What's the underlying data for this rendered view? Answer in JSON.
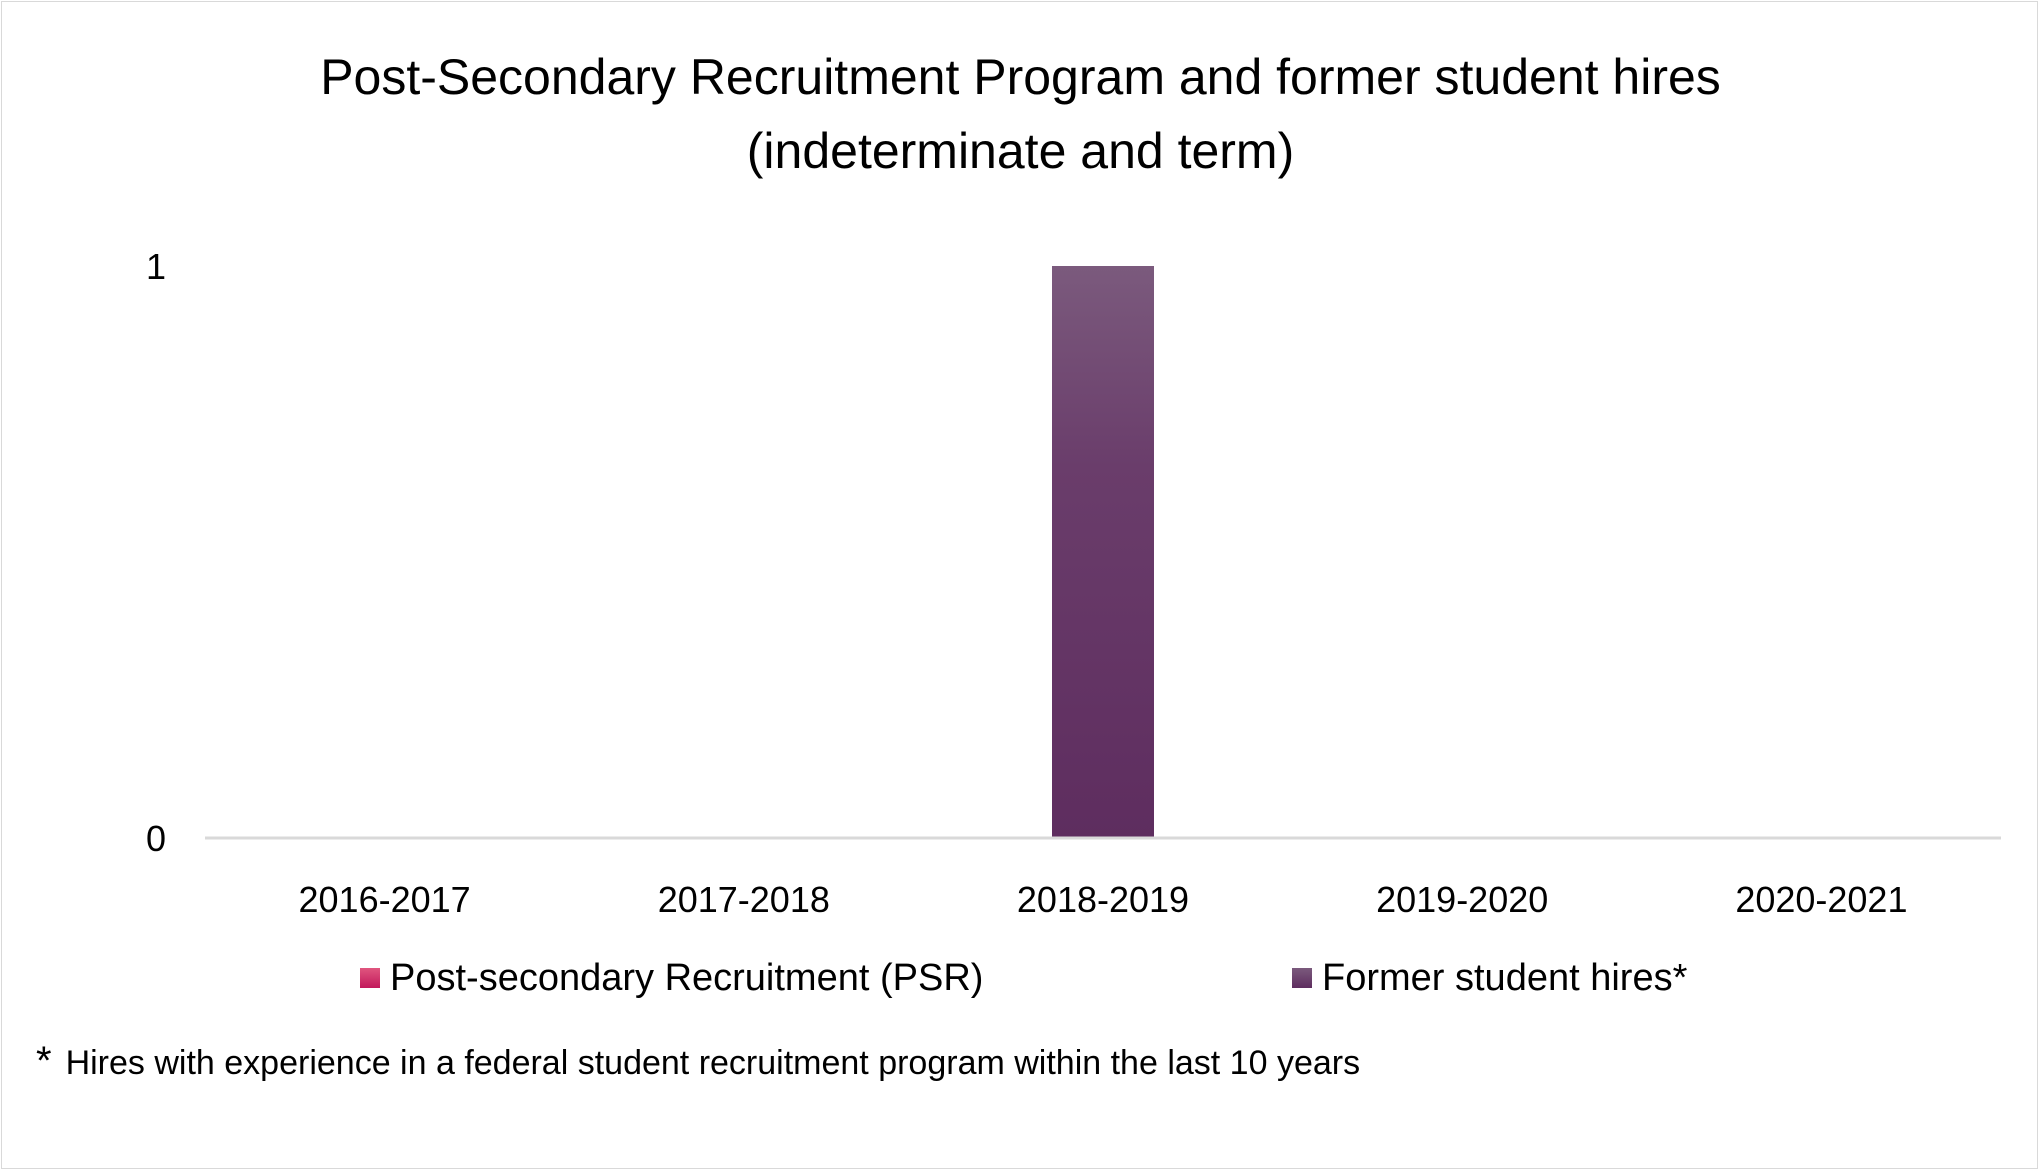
{
  "chart_data": {
    "type": "bar",
    "title": "Post-Secondary Recruitment Program and former student hires (indeterminate and term)",
    "title_lines": [
      "Post-Secondary Recruitment Program and former student hires",
      "(indeterminate and term)"
    ],
    "categories": [
      "2016-2017",
      "2017-2018",
      "2018-2019",
      "2019-2020",
      "2020-2021"
    ],
    "series": [
      {
        "name": "Post-secondary Recruitment (PSR)",
        "values": [
          0,
          0,
          0,
          0,
          0
        ],
        "color": "#c2185b"
      },
      {
        "name": "Former student hires*",
        "values": [
          0,
          0,
          1,
          0,
          0
        ],
        "color": "#5e2d5f"
      }
    ],
    "ylim": [
      0,
      1
    ],
    "yticks": [
      "0",
      "1"
    ],
    "grid": false,
    "legend_position": "bottom"
  },
  "footnote": {
    "mark": "*",
    "text": "Hires with experience in a federal student recruitment program within the last 10 years"
  }
}
